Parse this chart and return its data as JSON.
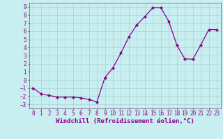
{
  "x": [
    0,
    1,
    2,
    3,
    4,
    5,
    6,
    7,
    8,
    9,
    10,
    11,
    12,
    13,
    14,
    15,
    16,
    17,
    18,
    19,
    20,
    21,
    22,
    23
  ],
  "y": [
    -1,
    -1.7,
    -1.9,
    -2.1,
    -2.1,
    -2.1,
    -2.2,
    -2.4,
    -2.7,
    0.3,
    1.5,
    3.3,
    5.3,
    6.8,
    7.8,
    8.9,
    8.9,
    7.2,
    4.3,
    2.6,
    2.55,
    4.3,
    6.2,
    6.2
  ],
  "line_color": "#8B008B",
  "marker": "D",
  "marker_size": 2,
  "bg_color": "#c8eef0",
  "grid_color": "#a8d8da",
  "xlabel": "Windchill (Refroidissement éolien,°C)",
  "xlim": [
    -0.5,
    23.5
  ],
  "ylim": [
    -3.5,
    9.5
  ],
  "yticks": [
    -3,
    -2,
    -1,
    0,
    1,
    2,
    3,
    4,
    5,
    6,
    7,
    8,
    9
  ],
  "xticks": [
    0,
    1,
    2,
    3,
    4,
    5,
    6,
    7,
    8,
    9,
    10,
    11,
    12,
    13,
    14,
    15,
    16,
    17,
    18,
    19,
    20,
    21,
    22,
    23
  ],
  "tick_fontsize": 5.5,
  "label_fontsize": 6.5,
  "spine_color": "#7a4a7a"
}
